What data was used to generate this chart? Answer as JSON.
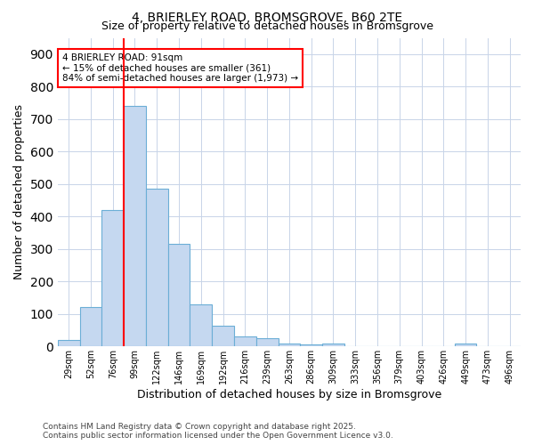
{
  "title1": "4, BRIERLEY ROAD, BROMSGROVE, B60 2TE",
  "title2": "Size of property relative to detached houses in Bromsgrove",
  "xlabel": "Distribution of detached houses by size in Bromsgrove",
  "ylabel": "Number of detached properties",
  "categories": [
    "29sqm",
    "52sqm",
    "76sqm",
    "99sqm",
    "122sqm",
    "146sqm",
    "169sqm",
    "192sqm",
    "216sqm",
    "239sqm",
    "263sqm",
    "286sqm",
    "309sqm",
    "333sqm",
    "356sqm",
    "379sqm",
    "403sqm",
    "426sqm",
    "449sqm",
    "473sqm",
    "496sqm"
  ],
  "values": [
    20,
    120,
    420,
    740,
    485,
    315,
    130,
    65,
    30,
    25,
    10,
    5,
    10,
    0,
    0,
    0,
    0,
    0,
    8,
    0,
    0
  ],
  "bar_color": "#c5d8f0",
  "bar_edge_color": "#6baed6",
  "grid_color": "#c8d4e8",
  "background_color": "#ffffff",
  "property_line_x": 2.5,
  "annotation_text_line1": "4 BRIERLEY ROAD: 91sqm",
  "annotation_text_line2": "← 15% of detached houses are smaller (361)",
  "annotation_text_line3": "84% of semi-detached houses are larger (1,973) →",
  "annotation_box_color": "white",
  "annotation_box_edge_color": "red",
  "property_line_color": "red",
  "footer_line1": "Contains HM Land Registry data © Crown copyright and database right 2025.",
  "footer_line2": "Contains public sector information licensed under the Open Government Licence v3.0.",
  "ylim": [
    0,
    950
  ],
  "yticks": [
    0,
    100,
    200,
    300,
    400,
    500,
    600,
    700,
    800,
    900
  ]
}
